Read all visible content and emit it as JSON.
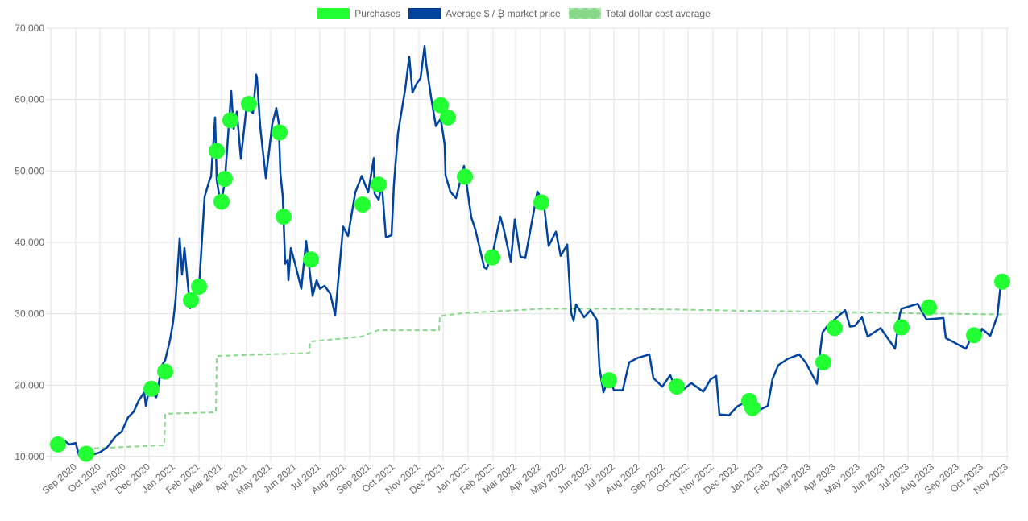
{
  "chart_data": {
    "type": "line",
    "title": "",
    "legend_position": "top",
    "legend": [
      {
        "label": "Purchases",
        "color": "#22ff33"
      },
      {
        "label": "Average $ / ₿ market price",
        "color": "#0044a0"
      },
      {
        "label": "Total dollar cost average",
        "color": "#88d88a"
      }
    ],
    "xlim": [
      "2020-08-01",
      "2023-11-01"
    ],
    "ylim": [
      10000,
      70000
    ],
    "y_ticks": [
      "10,000",
      "20,000",
      "30,000",
      "40,000",
      "50,000",
      "60,000",
      "70,000"
    ],
    "y_tick_values": [
      10000,
      20000,
      30000,
      40000,
      50000,
      60000,
      70000
    ],
    "x_ticks": [
      {
        "date": "2020-09-01",
        "label": "Sep 2020"
      },
      {
        "date": "2020-10-01",
        "label": "Oct 2020"
      },
      {
        "date": "2020-11-01",
        "label": "Nov 2020"
      },
      {
        "date": "2020-12-01",
        "label": "Dec 2020"
      },
      {
        "date": "2021-01-01",
        "label": "Jan 2021"
      },
      {
        "date": "2021-02-01",
        "label": "Feb 2021"
      },
      {
        "date": "2021-03-01",
        "label": "Mar 2021"
      },
      {
        "date": "2021-04-01",
        "label": "Apr 2021"
      },
      {
        "date": "2021-05-01",
        "label": "May 2021"
      },
      {
        "date": "2021-06-01",
        "label": "Jun 2021"
      },
      {
        "date": "2021-07-01",
        "label": "Jul 2021"
      },
      {
        "date": "2021-08-01",
        "label": "Aug 2021"
      },
      {
        "date": "2021-09-01",
        "label": "Sep 2021"
      },
      {
        "date": "2021-10-01",
        "label": "Oct 2021"
      },
      {
        "date": "2021-11-01",
        "label": "Nov 2021"
      },
      {
        "date": "2021-12-01",
        "label": "Dec 2021"
      },
      {
        "date": "2022-01-01",
        "label": "Jan 2022"
      },
      {
        "date": "2022-02-01",
        "label": "Feb 2022"
      },
      {
        "date": "2022-03-01",
        "label": "Mar 2022"
      },
      {
        "date": "2022-04-01",
        "label": "Apr 2022"
      },
      {
        "date": "2022-05-01",
        "label": "May 2022"
      },
      {
        "date": "2022-06-01",
        "label": "Jun 2022"
      },
      {
        "date": "2022-07-01",
        "label": "Jul 2022"
      },
      {
        "date": "2022-08-01",
        "label": "Aug 2022"
      },
      {
        "date": "2022-09-01",
        "label": "Sep 2022"
      },
      {
        "date": "2022-10-01",
        "label": "Oct 2022"
      },
      {
        "date": "2022-11-01",
        "label": "Nov 2022"
      },
      {
        "date": "2022-12-01",
        "label": "Dec 2022"
      },
      {
        "date": "2023-01-01",
        "label": "Jan 2023"
      },
      {
        "date": "2023-02-01",
        "label": "Feb 2023"
      },
      {
        "date": "2023-03-01",
        "label": "Mar 2023"
      },
      {
        "date": "2023-04-01",
        "label": "Apr 2023"
      },
      {
        "date": "2023-05-01",
        "label": "May 2023"
      },
      {
        "date": "2023-06-01",
        "label": "Jun 2023"
      },
      {
        "date": "2023-07-01",
        "label": "Jul 2023"
      },
      {
        "date": "2023-08-01",
        "label": "Aug 2023"
      },
      {
        "date": "2023-09-01",
        "label": "Sep 2023"
      },
      {
        "date": "2023-10-01",
        "label": "Oct 2023"
      },
      {
        "date": "2023-11-01",
        "label": "Nov 2023"
      }
    ],
    "series": [
      {
        "name": "Average $ / ₿ market price",
        "points": [
          [
            "2020-08-01",
            11800
          ],
          [
            "2020-08-10",
            11900
          ],
          [
            "2020-08-17",
            12300
          ],
          [
            "2020-08-24",
            11700
          ],
          [
            "2020-09-01",
            11900
          ],
          [
            "2020-09-05",
            10200
          ],
          [
            "2020-09-15",
            10800
          ],
          [
            "2020-09-23",
            10300
          ],
          [
            "2020-10-01",
            10600
          ],
          [
            "2020-10-10",
            11300
          ],
          [
            "2020-10-21",
            12900
          ],
          [
            "2020-10-28",
            13500
          ],
          [
            "2020-11-05",
            15500
          ],
          [
            "2020-11-12",
            16300
          ],
          [
            "2020-11-18",
            17800
          ],
          [
            "2020-11-25",
            19000
          ],
          [
            "2020-11-27",
            17100
          ],
          [
            "2020-12-01",
            19300
          ],
          [
            "2020-12-10",
            18300
          ],
          [
            "2020-12-17",
            22800
          ],
          [
            "2020-12-21",
            23500
          ],
          [
            "2020-12-27",
            26300
          ],
          [
            "2020-12-31",
            29000
          ],
          [
            "2021-01-03",
            32000
          ],
          [
            "2021-01-08",
            40600
          ],
          [
            "2021-01-11",
            35500
          ],
          [
            "2021-01-14",
            39200
          ],
          [
            "2021-01-21",
            30800
          ],
          [
            "2021-01-25",
            32300
          ],
          [
            "2021-01-29",
            34300
          ],
          [
            "2021-02-01",
            33500
          ],
          [
            "2021-02-08",
            46400
          ],
          [
            "2021-02-14",
            48700
          ],
          [
            "2021-02-16",
            49200
          ],
          [
            "2021-02-21",
            57500
          ],
          [
            "2021-02-23",
            48800
          ],
          [
            "2021-02-28",
            45200
          ],
          [
            "2021-03-05",
            48400
          ],
          [
            "2021-03-13",
            61200
          ],
          [
            "2021-03-16",
            55900
          ],
          [
            "2021-03-20",
            58300
          ],
          [
            "2021-03-25",
            51700
          ],
          [
            "2021-04-01",
            59000
          ],
          [
            "2021-04-09",
            58100
          ],
          [
            "2021-04-13",
            63500
          ],
          [
            "2021-04-14",
            63000
          ],
          [
            "2021-04-18",
            56200
          ],
          [
            "2021-04-25",
            49000
          ],
          [
            "2021-05-03",
            56600
          ],
          [
            "2021-05-08",
            58800
          ],
          [
            "2021-05-11",
            56700
          ],
          [
            "2021-05-13",
            49700
          ],
          [
            "2021-05-16",
            46400
          ],
          [
            "2021-05-19",
            37000
          ],
          [
            "2021-05-22",
            37500
          ],
          [
            "2021-05-23",
            34700
          ],
          [
            "2021-05-26",
            39200
          ],
          [
            "2021-06-01",
            36700
          ],
          [
            "2021-06-08",
            33500
          ],
          [
            "2021-06-14",
            40200
          ],
          [
            "2021-06-22",
            32500
          ],
          [
            "2021-06-27",
            34700
          ],
          [
            "2021-07-01",
            33500
          ],
          [
            "2021-07-07",
            33900
          ],
          [
            "2021-07-14",
            32800
          ],
          [
            "2021-07-20",
            29800
          ],
          [
            "2021-07-26",
            37300
          ],
          [
            "2021-07-30",
            42200
          ],
          [
            "2021-08-05",
            40900
          ],
          [
            "2021-08-14",
            47000
          ],
          [
            "2021-08-22",
            49300
          ],
          [
            "2021-08-30",
            47000
          ],
          [
            "2021-09-06",
            51800
          ],
          [
            "2021-09-07",
            46800
          ],
          [
            "2021-09-12",
            46000
          ],
          [
            "2021-09-16",
            48100
          ],
          [
            "2021-09-21",
            40700
          ],
          [
            "2021-09-28",
            41000
          ],
          [
            "2021-10-01",
            48200
          ],
          [
            "2021-10-06",
            55300
          ],
          [
            "2021-10-15",
            61500
          ],
          [
            "2021-10-20",
            66000
          ],
          [
            "2021-10-24",
            61000
          ],
          [
            "2021-10-29",
            62200
          ],
          [
            "2021-11-03",
            63000
          ],
          [
            "2021-11-08",
            67500
          ],
          [
            "2021-11-10",
            65000
          ],
          [
            "2021-11-16",
            60400
          ],
          [
            "2021-11-22",
            56300
          ],
          [
            "2021-11-28",
            57300
          ],
          [
            "2021-12-03",
            53700
          ],
          [
            "2021-12-04",
            49400
          ],
          [
            "2021-12-10",
            47100
          ],
          [
            "2021-12-17",
            46200
          ],
          [
            "2021-12-27",
            50700
          ],
          [
            "2022-01-05",
            43500
          ],
          [
            "2022-01-10",
            41800
          ],
          [
            "2022-01-21",
            36500
          ],
          [
            "2022-01-24",
            36300
          ],
          [
            "2022-02-01",
            38700
          ],
          [
            "2022-02-10",
            43600
          ],
          [
            "2022-02-14",
            42000
          ],
          [
            "2022-02-23",
            37300
          ],
          [
            "2022-02-28",
            43200
          ],
          [
            "2022-03-07",
            38000
          ],
          [
            "2022-03-13",
            37800
          ],
          [
            "2022-03-28",
            47100
          ],
          [
            "2022-04-05",
            45500
          ],
          [
            "2022-04-11",
            39500
          ],
          [
            "2022-04-20",
            41500
          ],
          [
            "2022-04-26",
            38100
          ],
          [
            "2022-05-04",
            39700
          ],
          [
            "2022-05-09",
            30100
          ],
          [
            "2022-05-12",
            29000
          ],
          [
            "2022-05-15",
            31300
          ],
          [
            "2022-05-25",
            29500
          ],
          [
            "2022-06-02",
            30500
          ],
          [
            "2022-06-10",
            29100
          ],
          [
            "2022-06-13",
            22500
          ],
          [
            "2022-06-18",
            19000
          ],
          [
            "2022-06-25",
            21200
          ],
          [
            "2022-07-01",
            19300
          ],
          [
            "2022-07-12",
            19300
          ],
          [
            "2022-07-20",
            23200
          ],
          [
            "2022-07-30",
            23800
          ],
          [
            "2022-08-14",
            24300
          ],
          [
            "2022-08-19",
            21000
          ],
          [
            "2022-08-30",
            19800
          ],
          [
            "2022-09-09",
            21400
          ],
          [
            "2022-09-13",
            20200
          ],
          [
            "2022-09-20",
            18900
          ],
          [
            "2022-10-05",
            20300
          ],
          [
            "2022-10-20",
            19100
          ],
          [
            "2022-10-29",
            20800
          ],
          [
            "2022-11-05",
            21300
          ],
          [
            "2022-11-09",
            15900
          ],
          [
            "2022-11-21",
            15800
          ],
          [
            "2022-12-01",
            17000
          ],
          [
            "2022-12-14",
            17800
          ],
          [
            "2022-12-30",
            16600
          ],
          [
            "2023-01-08",
            17100
          ],
          [
            "2023-01-14",
            20900
          ],
          [
            "2023-01-21",
            22800
          ],
          [
            "2023-02-02",
            23700
          ],
          [
            "2023-02-16",
            24300
          ],
          [
            "2023-02-24",
            23200
          ],
          [
            "2023-03-10",
            20200
          ],
          [
            "2023-03-14",
            24700
          ],
          [
            "2023-03-17",
            27400
          ],
          [
            "2023-03-23",
            28300
          ],
          [
            "2023-04-11",
            30200
          ],
          [
            "2023-04-14",
            30500
          ],
          [
            "2023-04-20",
            28200
          ],
          [
            "2023-04-26",
            28300
          ],
          [
            "2023-05-05",
            29500
          ],
          [
            "2023-05-12",
            26800
          ],
          [
            "2023-05-28",
            28000
          ],
          [
            "2023-06-15",
            25100
          ],
          [
            "2023-06-21",
            30000
          ],
          [
            "2023-06-23",
            30700
          ],
          [
            "2023-07-13",
            31400
          ],
          [
            "2023-07-24",
            29200
          ],
          [
            "2023-08-14",
            29400
          ],
          [
            "2023-08-17",
            26600
          ],
          [
            "2023-09-11",
            25100
          ],
          [
            "2023-09-18",
            26800
          ],
          [
            "2023-09-28",
            27000
          ],
          [
            "2023-10-01",
            27900
          ],
          [
            "2023-10-11",
            26900
          ],
          [
            "2023-10-20",
            29700
          ],
          [
            "2023-10-24",
            34000
          ],
          [
            "2023-10-30",
            34600
          ]
        ]
      },
      {
        "name": "Total dollar cost average",
        "points": [
          [
            "2020-09-14",
            11100
          ],
          [
            "2020-12-20",
            11600
          ],
          [
            "2020-12-21",
            16000
          ],
          [
            "2021-02-22",
            16200
          ],
          [
            "2021-02-23",
            24100
          ],
          [
            "2021-06-18",
            24500
          ],
          [
            "2021-06-19",
            26100
          ],
          [
            "2021-08-22",
            26800
          ],
          [
            "2021-09-11",
            27700
          ],
          [
            "2021-11-26",
            27700
          ],
          [
            "2021-11-27",
            29700
          ],
          [
            "2021-12-27",
            30100
          ],
          [
            "2022-04-02",
            30700
          ],
          [
            "2022-06-25",
            30700
          ],
          [
            "2022-09-16",
            30600
          ],
          [
            "2022-12-17",
            30400
          ],
          [
            "2023-03-19",
            30300
          ],
          [
            "2023-07-15",
            30050
          ],
          [
            "2023-10-30",
            29900
          ]
        ]
      },
      {
        "name": "Purchases",
        "points": [
          [
            "2020-08-10",
            11700
          ],
          [
            "2020-09-14",
            10400
          ],
          [
            "2020-12-04",
            19500
          ],
          [
            "2020-12-21",
            21900
          ],
          [
            "2021-01-22",
            31900
          ],
          [
            "2021-02-01",
            33800
          ],
          [
            "2021-02-23",
            52800
          ],
          [
            "2021-03-01",
            45700
          ],
          [
            "2021-03-05",
            48900
          ],
          [
            "2021-03-12",
            57100
          ],
          [
            "2021-04-04",
            59400
          ],
          [
            "2021-05-12",
            55400
          ],
          [
            "2021-05-17",
            43600
          ],
          [
            "2021-06-20",
            37600
          ],
          [
            "2021-08-23",
            45300
          ],
          [
            "2021-09-12",
            48100
          ],
          [
            "2021-11-28",
            59200
          ],
          [
            "2021-12-07",
            57500
          ],
          [
            "2021-12-28",
            49200
          ],
          [
            "2022-01-31",
            37900
          ],
          [
            "2022-04-02",
            45600
          ],
          [
            "2022-06-25",
            20700
          ],
          [
            "2022-09-17",
            19800
          ],
          [
            "2022-12-16",
            17800
          ],
          [
            "2022-12-20",
            16800
          ],
          [
            "2023-03-18",
            23200
          ],
          [
            "2023-04-01",
            28000
          ],
          [
            "2023-06-23",
            28100
          ],
          [
            "2023-07-27",
            30900
          ],
          [
            "2023-09-21",
            27000
          ],
          [
            "2023-10-26",
            34500
          ]
        ]
      }
    ]
  }
}
